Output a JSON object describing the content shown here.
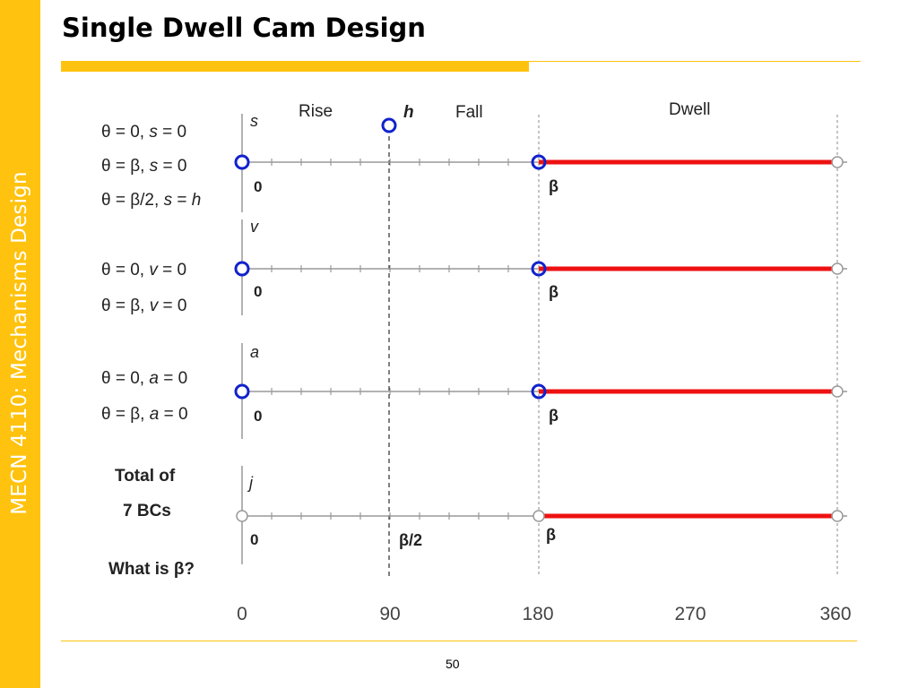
{
  "sidebar": {
    "text": "MECN 4110: Mechanisms Design"
  },
  "title": "Single Dwell Cam Design",
  "page_number": "50",
  "conditions": {
    "s1": "θ = 0, ",
    "s1_var": "s",
    "s1_end": " = 0",
    "s2": "θ = β, ",
    "s2_var": "s",
    "s2_end": " = 0",
    "s3": "θ = β/2, ",
    "s3_var": "s",
    "s3_mid": " = ",
    "s3_h": "h",
    "v1": "θ = 0, ",
    "v1_var": "v",
    "v1_end": " = 0",
    "v2": "θ = β, ",
    "v2_var": "v",
    "v2_end": " = 0",
    "a1": "θ = 0, ",
    "a1_var": "a",
    "a1_end": " = 0",
    "a2": "θ = β, ",
    "a2_var": "a",
    "a2_end": " = 0",
    "total_line1": "Total of",
    "total_line2": "7 BCs",
    "question": "What is β?"
  },
  "diagram": {
    "segment_labels": {
      "rise": "Rise",
      "fall": "Fall",
      "dwell": "Dwell",
      "h": "h"
    },
    "axis_names": {
      "s": "s",
      "v": "v",
      "a": "a",
      "j": "j"
    },
    "zero_label": "0",
    "beta_label": "β",
    "beta_half_label": "β/2",
    "x_ticks": [
      "0",
      "90",
      "180",
      "270",
      "360"
    ],
    "colors": {
      "dwell_line": "#EE1111",
      "bc_circle": "#1122CC",
      "axis": "#999999",
      "accent": "#FFC20E"
    }
  }
}
